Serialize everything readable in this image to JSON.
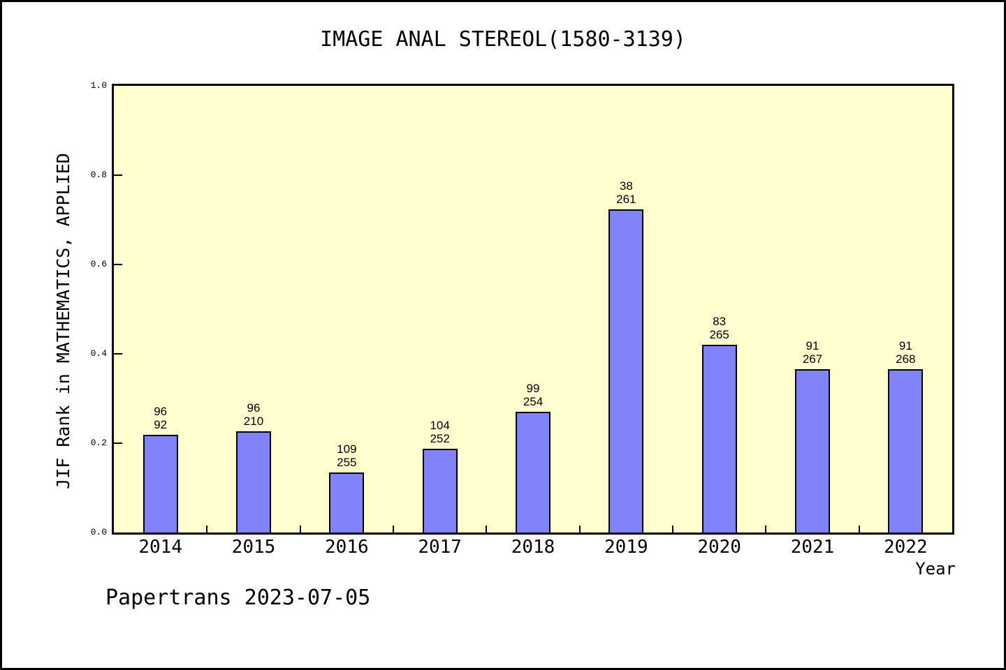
{
  "chart_data": {
    "type": "bar",
    "title": "IMAGE ANAL STEREOL(1580-3139)",
    "xlabel": "Year",
    "ylabel": "JIF Rank in MATHEMATICS, APPLIED",
    "categories": [
      "2014",
      "2015",
      "2016",
      "2017",
      "2018",
      "2019",
      "2020",
      "2021",
      "2022"
    ],
    "values": [
      0.218,
      0.226,
      0.135,
      0.187,
      0.27,
      0.723,
      0.42,
      0.365,
      0.365
    ],
    "bar_labels": [
      [
        "96",
        "92"
      ],
      [
        "96",
        "210"
      ],
      [
        "109",
        "255"
      ],
      [
        "104",
        "252"
      ],
      [
        "99",
        "254"
      ],
      [
        "38",
        "261"
      ],
      [
        "83",
        "265"
      ],
      [
        "91",
        "267"
      ],
      [
        "91",
        "268"
      ]
    ],
    "yticks": [
      0.0,
      0.2,
      0.4,
      0.6,
      0.8,
      1.0
    ],
    "ytick_labels": [
      "0.0",
      "0.2",
      "0.4",
      "0.6",
      "0.8",
      "1.0"
    ],
    "ylim": [
      0,
      1
    ],
    "grid": false,
    "legend_position": "none",
    "annotation": "Papertrans 2023-07-05",
    "colors": {
      "bar_fill": "#8282fa",
      "bar_edge": "#000000",
      "plot_bg": "#ffffcf",
      "axis": "#000000",
      "text": "#000000",
      "canvas_bg": "#ffffff"
    }
  }
}
